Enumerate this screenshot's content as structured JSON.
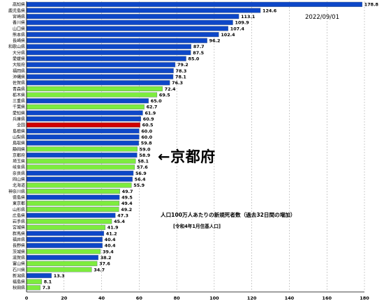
{
  "chart_data": {
    "type": "bar",
    "orientation": "horizontal",
    "title": "人口100万人あたりの新規死者数（過去32日間の増加）",
    "subtitle": "[令和4年1月住基人口]",
    "date": "2022/09/01",
    "annotation": "←京都府",
    "xlim": [
      0,
      180
    ],
    "xticks": [
      0,
      20,
      40,
      60,
      80,
      100,
      120,
      140,
      160,
      180
    ],
    "grid": true,
    "colors": {
      "blue": "#0d47c8",
      "green": "#7dec3e",
      "red": "#d00000",
      "grid": "#999999"
    },
    "categories": [
      "高知県",
      "鹿児島県",
      "宮崎県",
      "香川県",
      "山口県",
      "熊本県",
      "長崎県",
      "和歌山県",
      "大分県",
      "愛媛県",
      "大阪府",
      "福岡県",
      "沖縄県",
      "佐賀県",
      "青森県",
      "栃木県",
      "三重県",
      "千葉県",
      "愛知県",
      "兵庫県",
      "全国",
      "島根県",
      "山梨県",
      "鳥取県",
      "静岡県",
      "京都府",
      "埼玉県",
      "岐阜県",
      "奈良県",
      "岡山県",
      "北海道",
      "神奈川県",
      "徳島県",
      "東京都",
      "山形県",
      "広島県",
      "岩手県",
      "宮城県",
      "群馬県",
      "福井県",
      "長野県",
      "茨城県",
      "滋賀県",
      "富山県",
      "石川県",
      "新潟県",
      "福島県",
      "秋田県"
    ],
    "values": [
      178.8,
      124.6,
      113.1,
      109.9,
      107.4,
      102.4,
      96.2,
      87.7,
      87.5,
      85.0,
      79.2,
      78.3,
      78.1,
      76.3,
      72.4,
      69.5,
      65.0,
      62.7,
      61.9,
      60.9,
      60.5,
      60.0,
      60.0,
      59.8,
      59.0,
      58.9,
      58.1,
      57.6,
      56.9,
      56.4,
      55.9,
      49.7,
      49.5,
      49.4,
      49.2,
      47.3,
      45.4,
      41.9,
      41.2,
      40.4,
      40.4,
      39.4,
      38.2,
      37.6,
      34.7,
      13.3,
      8.1,
      7.3
    ],
    "value_labels": [
      "178.8",
      "124.6",
      "113.1",
      "109.9",
      "107.4",
      "102.4",
      "96.2",
      "87.7",
      "87.5",
      "85.0",
      "79.2",
      "78.3",
      "78.1",
      "76.3",
      "72.4",
      "69.5",
      "65.0",
      "62.7",
      "61.9",
      "60.9",
      "60.5",
      "60.0",
      "60.0",
      "59.8",
      "59.0",
      "58.9",
      "58.1",
      "57.6",
      "56.9",
      "56.4",
      "55.9",
      "49.7",
      "49.5",
      "49.4",
      "49.2",
      "47.3",
      "45.4",
      "41.9",
      "41.2",
      "40.4",
      "40.4",
      "39.4",
      "38.2",
      "37.6",
      "34.7",
      "13.3",
      "8.1",
      "7.3"
    ],
    "bar_colors": [
      "blue",
      "blue",
      "blue",
      "blue",
      "blue",
      "blue",
      "blue",
      "blue",
      "blue",
      "blue",
      "blue",
      "blue",
      "blue",
      "blue",
      "green",
      "green",
      "blue",
      "green",
      "blue",
      "blue",
      "red",
      "blue",
      "blue",
      "blue",
      "green",
      "blue",
      "green",
      "green",
      "blue",
      "blue",
      "green",
      "green",
      "blue",
      "green",
      "green",
      "blue",
      "green",
      "green",
      "blue",
      "blue",
      "blue",
      "green",
      "blue",
      "green",
      "green",
      "blue",
      "green",
      "green"
    ]
  }
}
